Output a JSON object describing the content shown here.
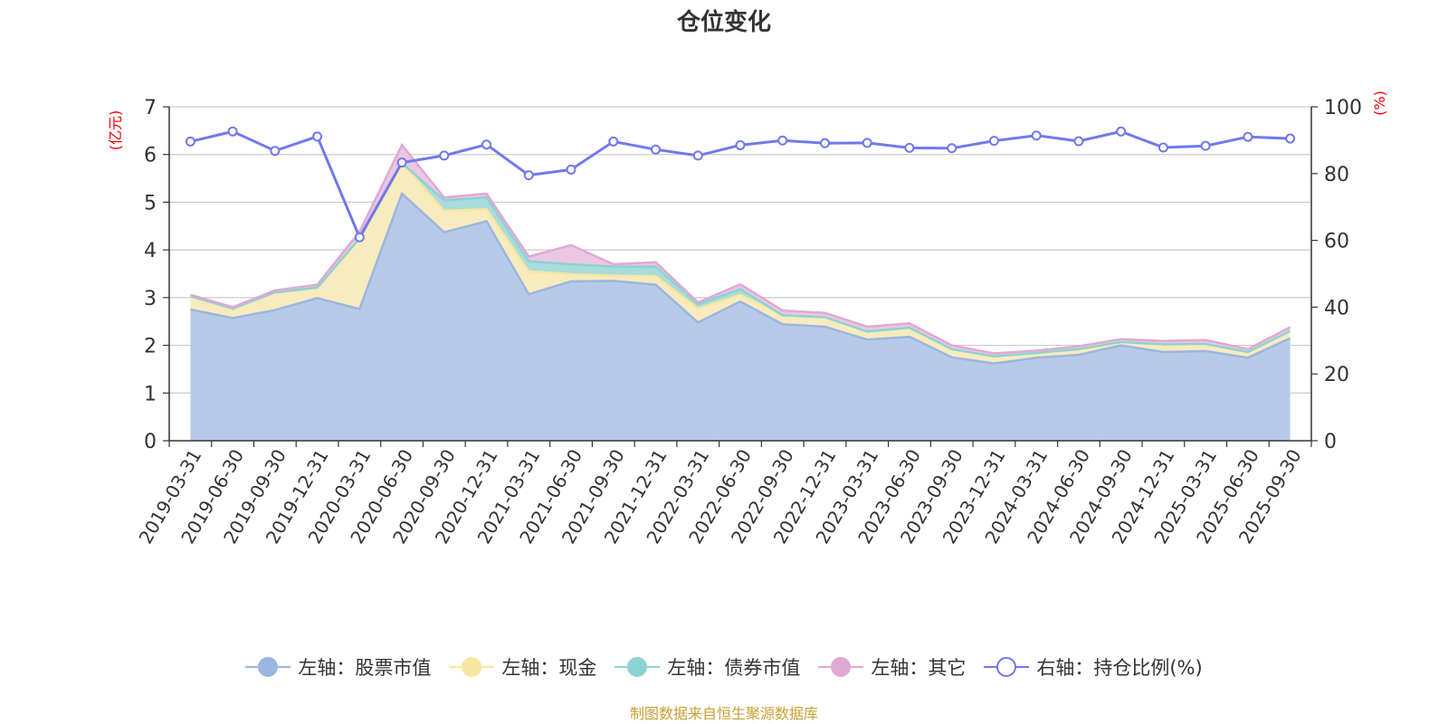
{
  "chart_data": {
    "type": "area",
    "title": "仓位变化",
    "y_left_label": "(亿元)",
    "y_right_label": "(%)",
    "y_left_range": [
      0,
      7
    ],
    "y_left_ticks": [
      "0",
      "1",
      "2",
      "3",
      "4",
      "5",
      "6",
      "7"
    ],
    "y_right_range": [
      0,
      100
    ],
    "y_right_ticks": [
      "0",
      "20",
      "40",
      "60",
      "80",
      "100"
    ],
    "grid": true,
    "legend_position": "bottom",
    "categories": [
      "2019-03-31",
      "2019-06-30",
      "2019-09-30",
      "2019-12-31",
      "2020-03-31",
      "2020-06-30",
      "2020-09-30",
      "2020-12-31",
      "2021-03-31",
      "2021-06-30",
      "2021-09-30",
      "2021-12-31",
      "2022-03-31",
      "2022-06-30",
      "2022-09-30",
      "2022-12-31",
      "2023-03-31",
      "2023-06-30",
      "2023-09-30",
      "2023-12-31",
      "2024-03-31",
      "2024-06-30",
      "2024-09-30",
      "2024-12-31",
      "2025-03-31",
      "2025-06-30",
      "2025-09-30"
    ],
    "series": [
      {
        "name": "左轴：股票市值",
        "axis": "left",
        "kind": "stacked-area",
        "color": "#9bb6e0",
        "fill": "#b7cbe9",
        "values": [
          2.75,
          2.57,
          2.74,
          2.99,
          2.76,
          5.18,
          4.37,
          4.6,
          3.07,
          3.34,
          3.35,
          3.27,
          2.48,
          2.92,
          2.44,
          2.39,
          2.12,
          2.18,
          1.75,
          1.62,
          1.74,
          1.8,
          2.0,
          1.86,
          1.88,
          1.74,
          2.15
        ]
      },
      {
        "name": "左轴：现金",
        "axis": "left",
        "kind": "stacked-area",
        "color": "#f8e6a0",
        "fill": "#f8ebbd",
        "values": [
          0.28,
          0.2,
          0.37,
          0.22,
          1.48,
          0.64,
          0.45,
          0.25,
          0.48,
          0.15,
          0.11,
          0.18,
          0.29,
          0.14,
          0.19,
          0.2,
          0.17,
          0.19,
          0.17,
          0.15,
          0.1,
          0.12,
          0.07,
          0.16,
          0.15,
          0.12,
          0.15
        ]
      },
      {
        "name": "左轴：债券市值",
        "axis": "left",
        "kind": "stacked-area",
        "color": "#8dd3d3",
        "fill": "#a9dcdc",
        "values": [
          0,
          0,
          0,
          0,
          0,
          0,
          0.22,
          0.25,
          0.21,
          0.21,
          0.19,
          0.2,
          0.09,
          0.12,
          0,
          0,
          0,
          0,
          0,
          0,
          0,
          0,
          0,
          0,
          0,
          0,
          0
        ]
      },
      {
        "name": "左轴：其它",
        "axis": "left",
        "kind": "stacked-area",
        "color": "#e0a9d3",
        "fill": "#ebc7e3",
        "values": [
          0.03,
          0.03,
          0.04,
          0.06,
          0.14,
          0.38,
          0.06,
          0.08,
          0.1,
          0.4,
          0.05,
          0.09,
          0.04,
          0.1,
          0.1,
          0.09,
          0.1,
          0.09,
          0.08,
          0.06,
          0.05,
          0.06,
          0.06,
          0.07,
          0.08,
          0.06,
          0.08
        ]
      },
      {
        "name": "右轴：持仓比例(%)",
        "axis": "right",
        "kind": "line",
        "color": "#7079eb",
        "values": [
          89.6,
          92.6,
          86.8,
          91.1,
          60.9,
          83.3,
          85.4,
          88.7,
          79.5,
          81.2,
          89.6,
          87.2,
          85.4,
          88.5,
          89.9,
          89.1,
          89.2,
          87.7,
          87.6,
          89.8,
          91.4,
          89.7,
          92.6,
          87.8,
          88.3,
          91.0,
          90.5
        ]
      }
    ]
  },
  "source_text": "制图数据来自恒生聚源数据库"
}
